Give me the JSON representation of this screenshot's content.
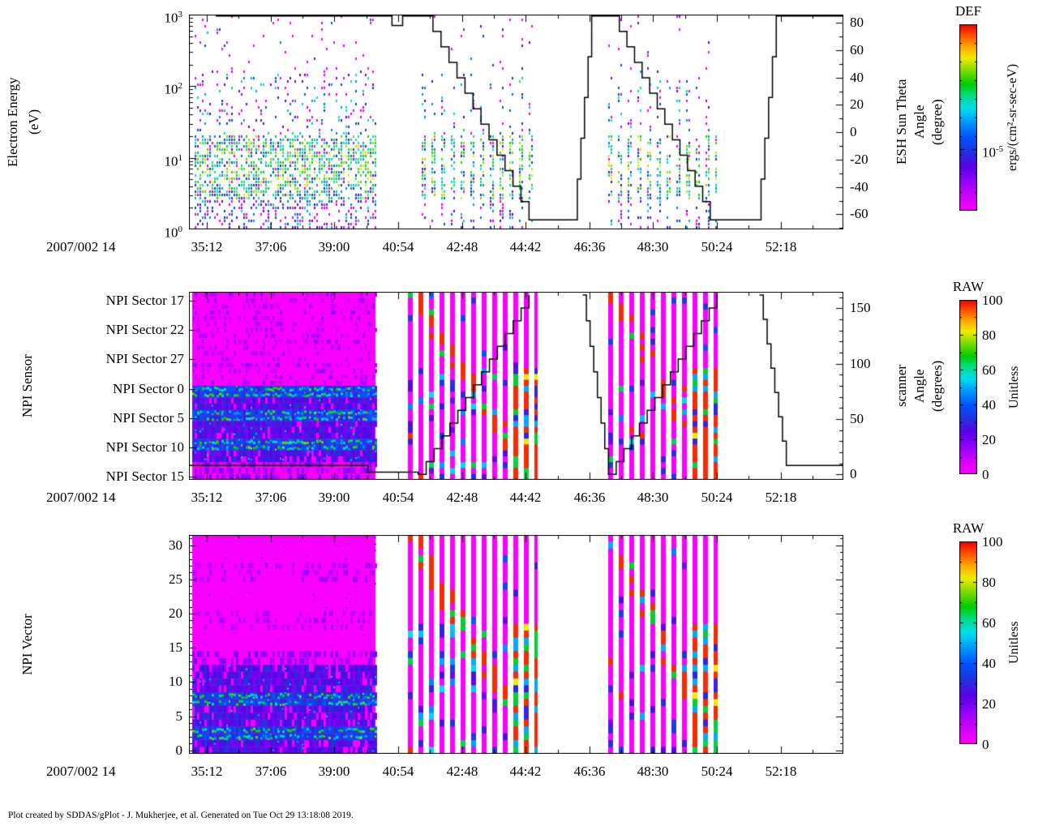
{
  "page": {
    "bg": "#ffffff"
  },
  "footer": {
    "text": "Plot created by SDDAS/gPlot - J. Mukherjee, et al.  Generated on Tue Oct 29 13:18:08 2019."
  },
  "colors": {
    "background": "#ffffff",
    "frame": "#000000",
    "no_data": "#ffffff",
    "rainbow_stops": [
      [
        0,
        "#ff00ff"
      ],
      [
        0.08,
        "#d400ff"
      ],
      [
        0.16,
        "#9400ff"
      ],
      [
        0.24,
        "#5a00e6"
      ],
      [
        0.32,
        "#2233dd"
      ],
      [
        0.4,
        "#0055ff"
      ],
      [
        0.48,
        "#0099ff"
      ],
      [
        0.55,
        "#00ddee"
      ],
      [
        0.62,
        "#00dd88"
      ],
      [
        0.68,
        "#00cc00"
      ],
      [
        0.76,
        "#88dd00"
      ],
      [
        0.82,
        "#eeee00"
      ],
      [
        0.88,
        "#ffaa00"
      ],
      [
        0.94,
        "#ff5500"
      ],
      [
        1,
        "#ee0000"
      ]
    ]
  },
  "time_axis": {
    "date_label": "2007/002 14",
    "domain": [
      2080,
      3250
    ],
    "ticks": [
      {
        "t": 2112,
        "label": "35:12"
      },
      {
        "t": 2226,
        "label": "37:06"
      },
      {
        "t": 2340,
        "label": "39:00"
      },
      {
        "t": 2454,
        "label": "40:54"
      },
      {
        "t": 2568,
        "label": "42:48"
      },
      {
        "t": 2682,
        "label": "44:42"
      },
      {
        "t": 2796,
        "label": "46:36"
      },
      {
        "t": 2910,
        "label": "48:30"
      },
      {
        "t": 3024,
        "label": "50:24"
      },
      {
        "t": 3138,
        "label": "52:18"
      }
    ]
  },
  "chart_data": [
    {
      "id": "electron-energy-spectrogram",
      "type": "heatmap",
      "title_left_lines": [
        "Electron Energy",
        "(eV)"
      ],
      "y_axis": {
        "scale": "log10",
        "min_exp": 0,
        "max_exp": 3,
        "tick_exps": [
          0,
          1,
          2,
          3
        ]
      },
      "right_axis": {
        "title_lines": [
          "ESH Sun Theta",
          "Angle",
          "(degree)"
        ],
        "min": -71,
        "max": 86,
        "ticks": [
          80,
          60,
          40,
          20,
          0,
          -20,
          -40,
          -60
        ],
        "minor_step": 10
      },
      "colorbar": {
        "title": "DEF",
        "unit": "ergs/(cm²-sr-sec-eV)",
        "scale": "log",
        "tick_label": {
          "base": "10",
          "sup": "-5"
        },
        "tick_frac": 0.67
      },
      "segments": [
        {
          "t0": 2090,
          "t1": 2415,
          "striped": false
        },
        {
          "t0": 2496,
          "t1": 2700,
          "striped": true
        },
        {
          "t0": 2830,
          "t1": 3022,
          "striped": true
        }
      ],
      "overlay_line": {
        "name": "ESH Sun Theta Angle (degree)",
        "segments": [
          {
            "type": "flat",
            "t0": 2128,
            "t1": 2443,
            "v": 85
          },
          {
            "type": "flat",
            "t0": 2443,
            "t1": 2462,
            "v": 78
          },
          {
            "type": "flat",
            "t0": 2462,
            "t1": 2502,
            "v": 85
          },
          {
            "type": "stair",
            "t0": 2502,
            "t1": 2688,
            "v0": 85,
            "v1": -62,
            "steps": 13
          },
          {
            "type": "flat",
            "t0": 2688,
            "t1": 2768,
            "v": -64
          },
          {
            "type": "stair",
            "t0": 2768,
            "t1": 2800,
            "v0": -64,
            "v1": 85,
            "steps": 5
          },
          {
            "type": "flat",
            "t0": 2800,
            "t1": 2836,
            "v": 85
          },
          {
            "type": "stair",
            "t0": 2836,
            "t1": 3012,
            "v0": 85,
            "v1": -62,
            "steps": 13
          },
          {
            "type": "flat",
            "t0": 3012,
            "t1": 3096,
            "v": -64
          },
          {
            "type": "stair",
            "t0": 3096,
            "t1": 3130,
            "v0": -64,
            "v1": 85,
            "steps": 5
          },
          {
            "type": "flat",
            "t0": 3130,
            "t1": 3250,
            "v": 85
          }
        ]
      }
    },
    {
      "id": "npi-sensor-spectrogram",
      "type": "heatmap",
      "title_left_lines": [
        "NPI Sensor"
      ],
      "y_axis": {
        "scale": "sector_rows",
        "rows": 32,
        "row_start_sector": 16,
        "labels": [
          {
            "sector": 17,
            "label": "NPI Sector 17"
          },
          {
            "sector": 22,
            "label": "NPI Sector 22"
          },
          {
            "sector": 27,
            "label": "NPI Sector 27"
          },
          {
            "sector": 0,
            "label": "NPI Sector 0"
          },
          {
            "sector": 5,
            "label": "NPI Sector 5"
          },
          {
            "sector": 10,
            "label": "NPI Sector 10"
          },
          {
            "sector": 15,
            "label": "NPI Sector 15"
          }
        ]
      },
      "right_axis": {
        "title_lines": [
          "scanner",
          "Angle",
          "(degrees)"
        ],
        "min": -5,
        "max": 165,
        "ticks": [
          0,
          50,
          100,
          150
        ],
        "minor_step": 10
      },
      "colorbar": {
        "title": "RAW",
        "unit": "Unitless",
        "min": 0,
        "max": 100,
        "ticks": [
          0,
          20,
          40,
          60,
          80,
          100
        ]
      },
      "bands": {
        "bright": [
          0,
          1,
          4,
          5,
          9,
          10
        ],
        "blue": [
          2,
          3,
          6,
          7,
          8,
          11,
          12
        ],
        "dim": [
          13,
          14,
          15
        ],
        "faint": [
          16,
          17,
          18,
          19,
          20,
          21,
          22,
          23,
          24,
          25,
          26,
          27,
          28,
          29,
          30,
          31
        ]
      },
      "segments": [
        {
          "t0": 2086,
          "t1": 2414,
          "striped": false
        },
        {
          "t0": 2472,
          "t1": 2703,
          "striped": true
        },
        {
          "t0": 2830,
          "t1": 3026,
          "striped": true
        }
      ],
      "overlay_line": {
        "name": "scanner angle (degrees)",
        "segments": [
          {
            "type": "flat",
            "t0": 2080,
            "t1": 2400,
            "v": 8
          },
          {
            "type": "flat",
            "t0": 2400,
            "t1": 2490,
            "v": 2
          },
          {
            "type": "stair",
            "t0": 2490,
            "t1": 2688,
            "v0": 0,
            "v1": 162,
            "steps": 14
          },
          {
            "type": "break"
          },
          {
            "type": "stair",
            "t0": 2784,
            "t1": 2830,
            "v0": 162,
            "v1": 0,
            "steps": 7
          },
          {
            "type": "stair",
            "t0": 2830,
            "t1": 3024,
            "v0": 0,
            "v1": 162,
            "steps": 14
          },
          {
            "type": "break"
          },
          {
            "type": "stair",
            "t0": 3100,
            "t1": 3148,
            "v0": 162,
            "v1": 8,
            "steps": 7
          },
          {
            "type": "flat",
            "t0": 3148,
            "t1": 3250,
            "v": 8
          }
        ]
      }
    },
    {
      "id": "npi-vector-spectrogram",
      "type": "heatmap",
      "title_left_lines": [
        "NPI Vector"
      ],
      "y_axis": {
        "scale": "linear_rows",
        "rows": 32,
        "min": 0,
        "max": 31,
        "ticks": [
          0,
          5,
          10,
          15,
          20,
          25,
          30
        ]
      },
      "colorbar": {
        "title": "RAW",
        "unit": "Unitless",
        "min": 0,
        "max": 100,
        "ticks": [
          0,
          20,
          40,
          60,
          80,
          100
        ]
      },
      "bands": {
        "bright": [
          2,
          3,
          7,
          8
        ],
        "blue": [
          0,
          1,
          4,
          5,
          6,
          9,
          10,
          11,
          12
        ],
        "dim": [
          13,
          14
        ],
        "faint": [
          18,
          19,
          20,
          25,
          26,
          27
        ]
      },
      "segments": [
        {
          "t0": 2086,
          "t1": 2414,
          "striped": false
        },
        {
          "t0": 2472,
          "t1": 2703,
          "striped": true
        },
        {
          "t0": 2830,
          "t1": 3026,
          "striped": true
        }
      ]
    }
  ]
}
